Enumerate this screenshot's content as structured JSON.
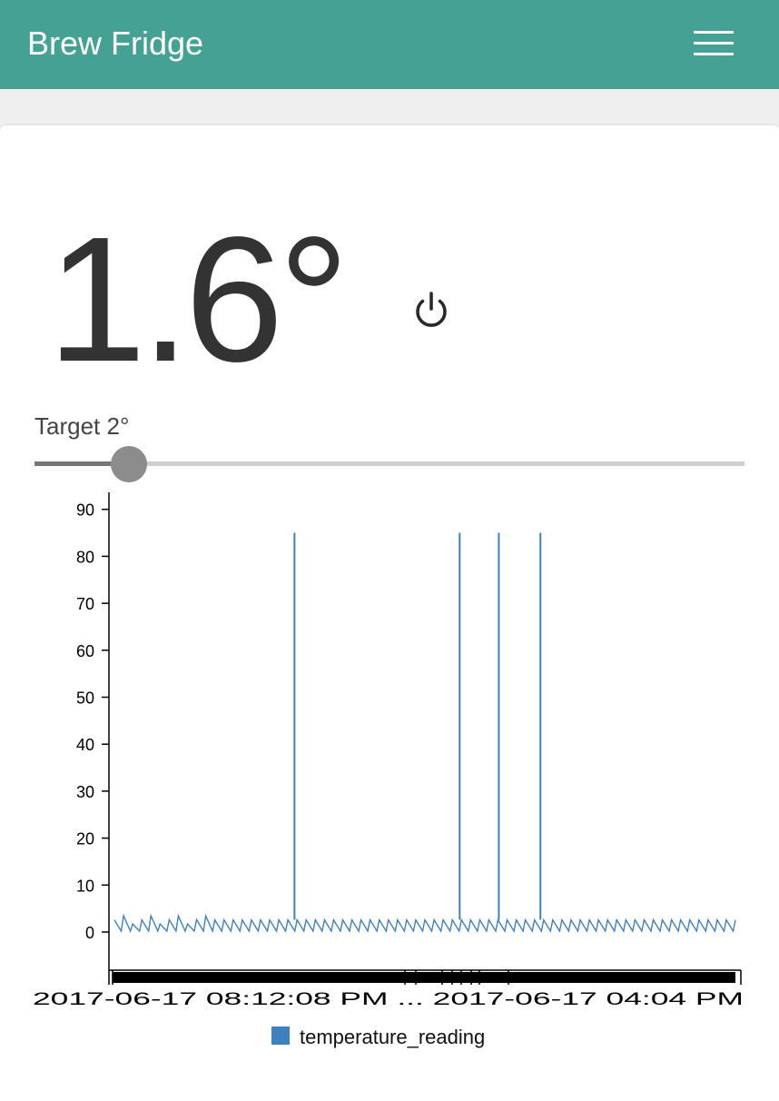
{
  "header": {
    "title": "Brew Fridge",
    "menu_icon": "hamburger-icon",
    "background": "#44a194"
  },
  "status": {
    "current_temperature": "1.6°",
    "power_icon": "power-icon"
  },
  "target": {
    "label": "Target 2°",
    "value": 2,
    "min": 0,
    "max": 30
  },
  "chart_data": {
    "type": "line",
    "title": "",
    "xlabel": "",
    "ylabel": "",
    "ylim": [
      -4,
      94
    ],
    "yticks": [
      0,
      10,
      20,
      30,
      40,
      50,
      60,
      70,
      80,
      90
    ],
    "xtick_text": "2017-06-17 08:12:08 PM ... 2017-06-17 04:04 PM",
    "x_range": [
      0,
      1
    ],
    "legend": {
      "position": "bottom-center",
      "entries": [
        "temperature_reading"
      ]
    },
    "grid": false,
    "series": [
      {
        "name": "temperature_reading",
        "color": "#3f80bf",
        "base_low": 0.2,
        "base_high": 2.6,
        "cycles": 68,
        "spikes": [
          {
            "x": 0.29,
            "y": 85
          },
          {
            "x": 0.556,
            "y": 85
          },
          {
            "x": 0.619,
            "y": 85
          },
          {
            "x": 0.686,
            "y": 85
          }
        ]
      }
    ]
  }
}
